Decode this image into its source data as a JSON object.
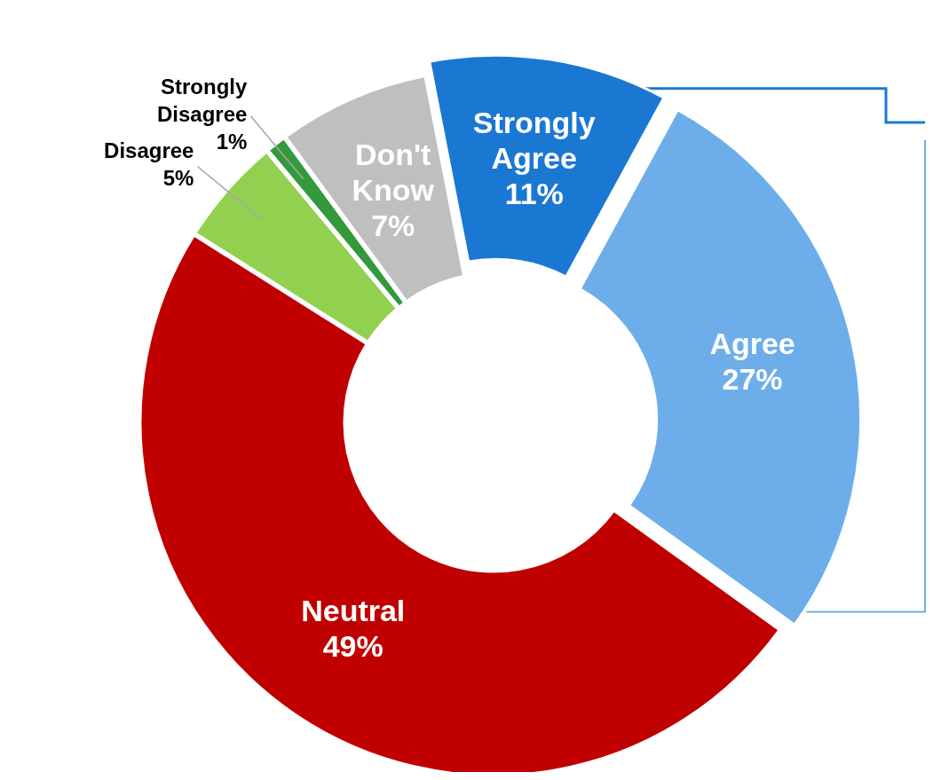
{
  "chart_data": {
    "type": "donut",
    "categories": [
      "Strongly Agree",
      "Agree",
      "Neutral",
      "Disagree",
      "Strongly Disagree",
      "Don't Know"
    ],
    "values": [
      11,
      27,
      49,
      5,
      1,
      7
    ],
    "colors": [
      "#1b78d2",
      "#6daeea",
      "#c00000",
      "#92d050",
      "#339a3b",
      "#bfbfbf"
    ],
    "value_labels": [
      "11%",
      "27%",
      "49%",
      "5%",
      "1%",
      "7%"
    ]
  }
}
